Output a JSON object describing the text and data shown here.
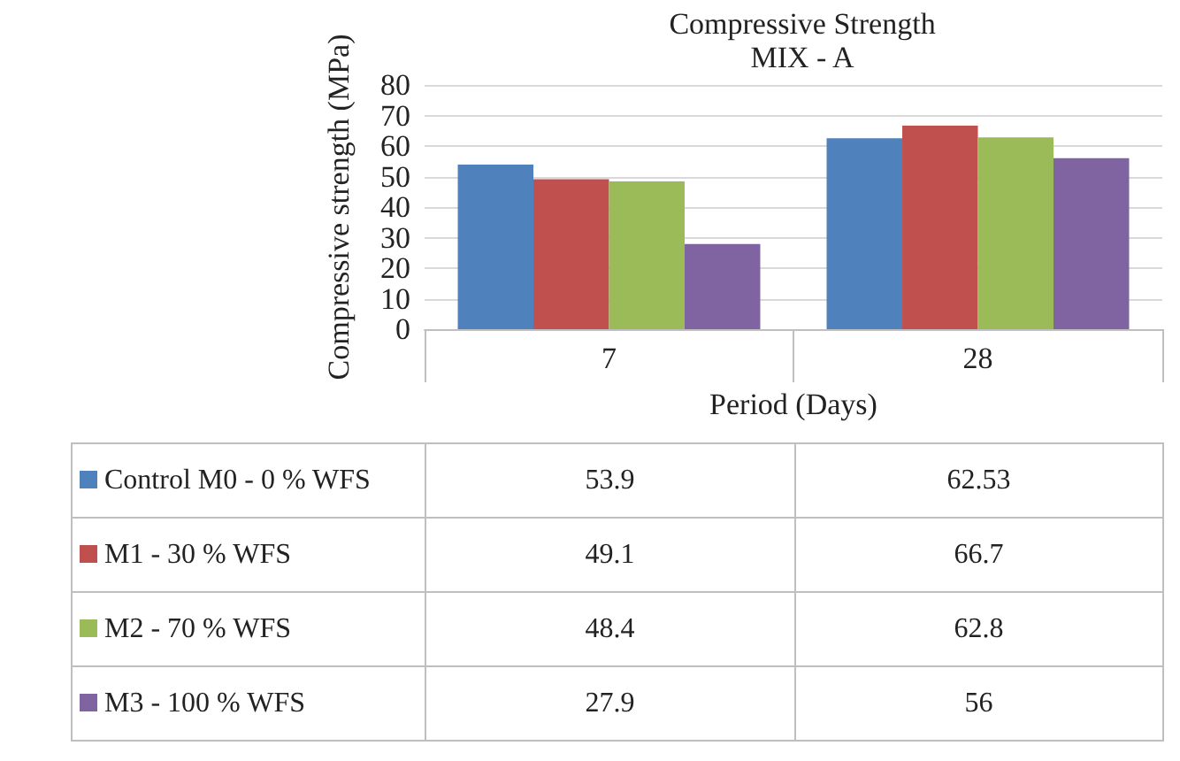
{
  "chart_data": {
    "type": "bar",
    "title": "Compressive Strength",
    "subtitle": "MIX - A",
    "xlabel": "Period (Days)",
    "ylabel": "Compressive strength (MPa)",
    "categories": [
      "7",
      "28"
    ],
    "series": [
      {
        "name": "Control M0 - 0 % WFS",
        "color": "#4f81bd",
        "values": [
          53.9,
          62.53
        ]
      },
      {
        "name": "M1 - 30 % WFS",
        "color": "#c0504d",
        "values": [
          49.1,
          66.7
        ]
      },
      {
        "name": "M2 - 70 % WFS",
        "color": "#9bbb59",
        "values": [
          48.4,
          62.8
        ]
      },
      {
        "name": "M3 - 100 % WFS",
        "color": "#8064a2",
        "values": [
          27.9,
          56
        ]
      }
    ],
    "ylim": [
      0,
      80
    ],
    "yticks": [
      0,
      10,
      20,
      30,
      40,
      50,
      60,
      70,
      80
    ],
    "grid": "y",
    "legend": "bottom",
    "data_labels": true
  }
}
